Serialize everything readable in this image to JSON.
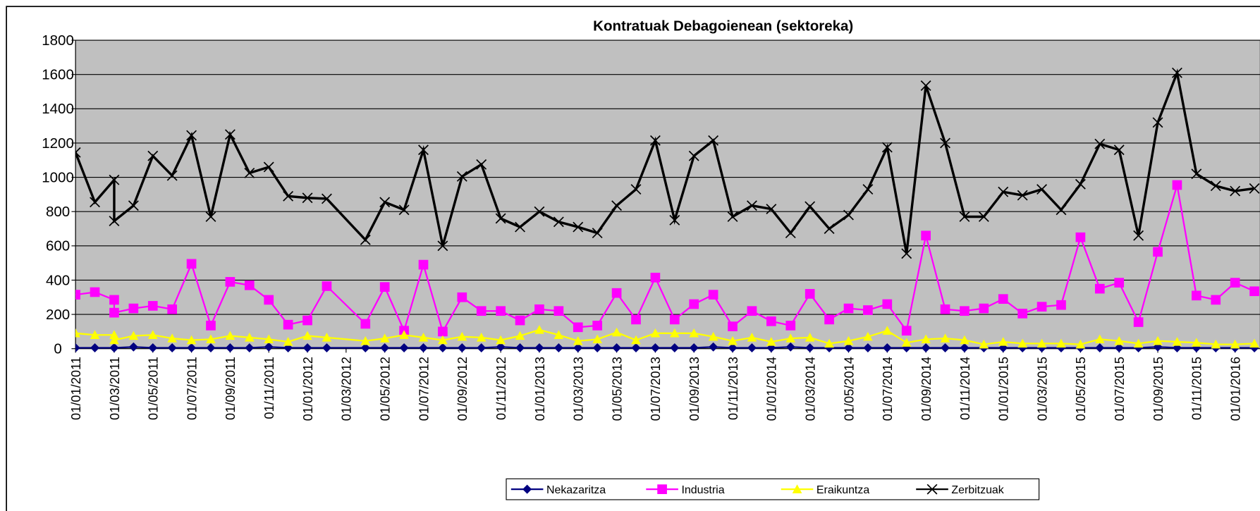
{
  "chart_data": {
    "type": "line",
    "title": "Kontratuak Debagoienean (sektoreka)",
    "x": [
      "01/01/2011",
      "01/02/2011",
      "01/03/2011",
      "01/03/2011",
      "01/04/2011",
      "01/05/2011",
      "01/06/2011",
      "01/07/2011",
      "01/08/2011",
      "01/09/2011",
      "01/10/2011",
      "01/11/2011",
      "01/12/2011",
      "01/01/2012",
      "01/02/2012",
      "01/04/2012",
      "01/05/2012",
      "01/06/2012",
      "01/07/2012",
      "01/08/2012",
      "01/09/2012",
      "01/10/2012",
      "01/11/2012",
      "01/12/2012",
      "01/01/2013",
      "01/02/2013",
      "01/03/2013",
      "01/04/2013",
      "01/05/2013",
      "01/06/2013",
      "01/07/2013",
      "01/08/2013",
      "01/09/2013",
      "01/10/2013",
      "01/11/2013",
      "01/12/2013",
      "01/01/2014",
      "01/02/2014",
      "01/03/2014",
      "01/04/2014",
      "01/05/2014",
      "01/06/2014",
      "01/07/2014",
      "01/08/2014",
      "01/09/2014",
      "01/10/2014",
      "01/11/2014",
      "01/12/2014",
      "01/01/2015",
      "01/02/2015",
      "01/03/2015",
      "01/04/2015",
      "01/05/2015",
      "01/06/2015",
      "01/07/2015",
      "01/08/2015",
      "01/09/2015",
      "01/10/2015",
      "01/11/2015",
      "01/12/2015",
      "01/01/2016",
      "01/02/2016"
    ],
    "series": [
      {
        "name": "Nekazaritza",
        "color": "#000080",
        "marker": "diamond",
        "values": [
          5,
          5,
          5,
          5,
          10,
          5,
          5,
          5,
          5,
          5,
          5,
          10,
          5,
          5,
          5,
          5,
          5,
          5,
          5,
          5,
          5,
          5,
          10,
          5,
          5,
          5,
          5,
          5,
          5,
          5,
          5,
          5,
          5,
          10,
          5,
          5,
          5,
          10,
          5,
          5,
          5,
          5,
          5,
          5,
          5,
          5,
          5,
          5,
          5,
          5,
          5,
          5,
          5,
          5,
          5,
          5,
          10,
          5,
          5,
          5,
          5,
          5
        ]
      },
      {
        "name": "Industria",
        "color": "#ff00ff",
        "marker": "square",
        "values": [
          315,
          330,
          285,
          210,
          235,
          250,
          230,
          495,
          135,
          390,
          370,
          285,
          140,
          165,
          365,
          145,
          360,
          105,
          490,
          100,
          300,
          220,
          220,
          165,
          230,
          220,
          125,
          135,
          325,
          170,
          415,
          170,
          260,
          315,
          130,
          220,
          160,
          135,
          320,
          170,
          235,
          225,
          260,
          105,
          660,
          230,
          220,
          235,
          290,
          205,
          245,
          255,
          650,
          350,
          385,
          155,
          565,
          955,
          310,
          285,
          385,
          335
        ]
      },
      {
        "name": "Eraikuntza",
        "color": "#ffff00",
        "marker": "triangle",
        "values": [
          90,
          80,
          80,
          50,
          75,
          80,
          60,
          50,
          55,
          75,
          65,
          55,
          40,
          75,
          65,
          45,
          60,
          80,
          65,
          50,
          70,
          65,
          50,
          75,
          110,
          80,
          45,
          55,
          95,
          50,
          90,
          90,
          90,
          70,
          45,
          65,
          40,
          60,
          65,
          30,
          45,
          70,
          105,
          35,
          55,
          60,
          50,
          25,
          40,
          30,
          30,
          30,
          25,
          55,
          45,
          30,
          45,
          40,
          35,
          25,
          25,
          30
        ]
      },
      {
        "name": "Zerbitzuak",
        "color": "#000000",
        "marker": "x",
        "values": [
          1145,
          855,
          985,
          745,
          835,
          1125,
          1010,
          1245,
          770,
          1250,
          1025,
          1060,
          890,
          880,
          875,
          635,
          855,
          810,
          1160,
          600,
          1005,
          1075,
          760,
          710,
          800,
          740,
          710,
          675,
          835,
          930,
          1215,
          750,
          1125,
          1215,
          770,
          835,
          815,
          675,
          830,
          700,
          780,
          930,
          1175,
          555,
          1535,
          1200,
          770,
          770,
          915,
          895,
          930,
          810,
          960,
          1195,
          1160,
          660,
          1320,
          1610,
          1020,
          950,
          920,
          935
        ]
      }
    ],
    "ylim": [
      0,
      1800
    ],
    "yticks": [
      0,
      200,
      400,
      600,
      800,
      1000,
      1200,
      1400,
      1600,
      1800
    ],
    "xticks": [
      "01/01/2011",
      "01/03/2011",
      "01/05/2011",
      "01/07/2011",
      "01/09/2011",
      "01/11/2011",
      "01/01/2012",
      "01/03/2012",
      "01/05/2012",
      "01/07/2012",
      "01/09/2012",
      "01/11/2012",
      "01/01/2013",
      "01/03/2013",
      "01/05/2013",
      "01/07/2013",
      "01/09/2013",
      "01/11/2013",
      "01/01/2014",
      "01/03/2014",
      "01/05/2014",
      "01/07/2014",
      "01/09/2014",
      "01/11/2014",
      "01/01/2015",
      "01/03/2015",
      "01/05/2015",
      "01/07/2015",
      "01/09/2015",
      "01/11/2015",
      "01/01/2016"
    ],
    "grid": true,
    "legend": "bottom",
    "background": "#c0c0c0"
  }
}
